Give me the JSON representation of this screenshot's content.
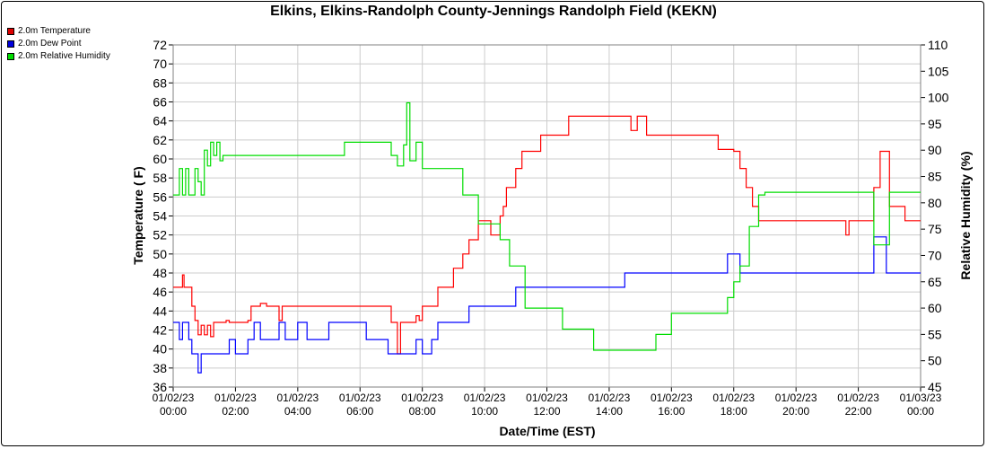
{
  "chart_data": {
    "type": "line",
    "title": "Elkins, Elkins-Randolph County-Jennings Randolph Field (KEKN)",
    "xlabel": "Date/Time (EST)",
    "ylabel": "Temperature ( F)",
    "y2label": "Relative Humidity (%)",
    "ylim": [
      36,
      72
    ],
    "y2lim": [
      45,
      110
    ],
    "grid": true,
    "legend_position": "top-left",
    "y_ticks": [
      "36",
      "38",
      "40",
      "42",
      "44",
      "46",
      "48",
      "50",
      "52",
      "54",
      "56",
      "58",
      "60",
      "62",
      "64",
      "66",
      "68",
      "70",
      "72"
    ],
    "y2_ticks": [
      "45",
      "50",
      "55",
      "60",
      "65",
      "70",
      "75",
      "80",
      "85",
      "90",
      "95",
      "100",
      "105",
      "110"
    ],
    "x_ticks": [
      {
        "date": "01/02/23",
        "time": "00:00"
      },
      {
        "date": "01/02/23",
        "time": "02:00"
      },
      {
        "date": "01/02/23",
        "time": "04:00"
      },
      {
        "date": "01/02/23",
        "time": "06:00"
      },
      {
        "date": "01/02/23",
        "time": "08:00"
      },
      {
        "date": "01/02/23",
        "time": "10:00"
      },
      {
        "date": "01/02/23",
        "time": "12:00"
      },
      {
        "date": "01/02/23",
        "time": "14:00"
      },
      {
        "date": "01/02/23",
        "time": "16:00"
      },
      {
        "date": "01/02/23",
        "time": "18:00"
      },
      {
        "date": "01/02/23",
        "time": "20:00"
      },
      {
        "date": "01/02/23",
        "time": "22:00"
      },
      {
        "date": "01/03/23",
        "time": "00:00"
      }
    ],
    "x_unit": "hours",
    "series": [
      {
        "name": "2.0m Temperature",
        "color": "#ff0000",
        "axis": "left",
        "x": [
          0,
          0.3,
          0.35,
          0.4,
          0.6,
          0.7,
          0.8,
          0.9,
          1.0,
          1.1,
          1.2,
          1.3,
          1.4,
          1.5,
          1.6,
          1.7,
          1.8,
          2.0,
          2.2,
          2.4,
          2.5,
          2.6,
          2.8,
          3.0,
          3.2,
          3.4,
          3.5,
          3.6,
          3.8,
          4.0,
          4.5,
          5.0,
          5.5,
          6.0,
          6.5,
          6.9,
          7.0,
          7.2,
          7.3,
          7.4,
          7.6,
          7.8,
          7.9,
          8.0,
          8.2,
          8.3,
          8.5,
          8.7,
          9.0,
          9.3,
          9.5,
          9.8,
          10.0,
          10.2,
          10.5,
          10.6,
          10.7,
          10.9,
          11.0,
          11.2,
          11.3,
          11.5,
          11.8,
          12.0,
          12.5,
          12.7,
          13.0,
          13.5,
          14.0,
          14.5,
          14.7,
          14.9,
          15.2,
          15.5,
          16.0,
          16.5,
          17.0,
          17.3,
          17.5,
          17.8,
          18.0,
          18.2,
          18.4,
          18.6,
          18.8,
          19.0,
          19.5,
          20.0,
          20.5,
          21.0,
          21.5,
          21.6,
          21.7,
          21.9,
          22.0,
          22.3,
          22.5,
          22.7,
          22.9,
          23.0,
          23.5,
          24.0
        ],
        "y": [
          46.5,
          47.8,
          46.5,
          46.5,
          44.5,
          43.0,
          41.5,
          42.5,
          41.5,
          42.5,
          41.3,
          42.8,
          42.8,
          42.8,
          42.8,
          43.0,
          42.8,
          42.8,
          42.8,
          43.0,
          44.5,
          44.5,
          44.8,
          44.5,
          44.5,
          43.0,
          44.5,
          44.5,
          44.5,
          44.5,
          44.5,
          44.5,
          44.5,
          44.5,
          44.5,
          44.5,
          42.8,
          39.5,
          42.8,
          42.8,
          42.8,
          43.5,
          43.0,
          44.5,
          44.5,
          44.5,
          46.5,
          46.5,
          48.5,
          50.0,
          51.5,
          53.5,
          53.5,
          52.0,
          54.0,
          55.0,
          57.0,
          57.0,
          59.0,
          60.8,
          60.8,
          60.8,
          62.5,
          62.5,
          62.5,
          64.5,
          64.5,
          64.5,
          64.5,
          64.5,
          63.0,
          64.5,
          62.5,
          62.5,
          62.5,
          62.5,
          62.5,
          62.5,
          61.0,
          61.0,
          60.8,
          59.0,
          57.0,
          55.0,
          53.5,
          53.5,
          53.5,
          53.5,
          53.5,
          53.5,
          53.5,
          52.0,
          53.5,
          53.5,
          53.5,
          53.5,
          57.0,
          60.8,
          60.8,
          55.0,
          53.5,
          53.5
        ]
      },
      {
        "name": "2.0m Dew Point",
        "color": "#0000ff",
        "axis": "left",
        "x": [
          0,
          0.2,
          0.3,
          0.4,
          0.5,
          0.6,
          0.7,
          0.8,
          0.9,
          1.0,
          1.1,
          1.2,
          1.3,
          1.4,
          1.6,
          1.8,
          2.0,
          2.2,
          2.4,
          2.5,
          2.6,
          2.8,
          3.0,
          3.2,
          3.4,
          3.6,
          3.8,
          4.0,
          4.3,
          4.6,
          5.0,
          5.4,
          5.8,
          6.2,
          6.5,
          6.9,
          7.0,
          7.2,
          7.5,
          7.8,
          8.0,
          8.3,
          8.5,
          8.8,
          9.0,
          9.5,
          9.8,
          10.0,
          10.5,
          11.0,
          11.5,
          12.0,
          12.5,
          13.0,
          13.5,
          14.0,
          14.5,
          15.0,
          15.5,
          16.0,
          16.5,
          17.0,
          17.5,
          17.8,
          18.0,
          18.2,
          18.5,
          19.0,
          20.0,
          21.0,
          22.0,
          22.3,
          22.5,
          22.7,
          22.9,
          23.0,
          23.5,
          24.0
        ],
        "y": [
          42.8,
          41.0,
          42.8,
          42.8,
          41.0,
          39.5,
          39.5,
          37.5,
          39.5,
          39.5,
          39.5,
          39.5,
          39.5,
          39.5,
          39.5,
          41.0,
          39.5,
          39.5,
          41.0,
          41.0,
          42.8,
          41.0,
          41.0,
          41.0,
          42.8,
          41.0,
          41.0,
          42.8,
          41.0,
          41.0,
          42.8,
          42.8,
          42.8,
          41.0,
          41.0,
          39.5,
          39.5,
          39.5,
          39.5,
          41.0,
          39.5,
          41.0,
          42.8,
          42.8,
          42.8,
          44.5,
          44.5,
          44.5,
          44.5,
          46.5,
          46.5,
          46.5,
          46.5,
          46.5,
          46.5,
          46.5,
          48.0,
          48.0,
          48.0,
          48.0,
          48.0,
          48.0,
          48.0,
          50.0,
          50.0,
          48.0,
          48.0,
          48.0,
          48.0,
          48.0,
          48.0,
          48.0,
          51.8,
          51.8,
          48.0,
          48.0,
          48.0,
          48.0
        ]
      },
      {
        "name": "2.0m Relative Humidity",
        "color": "#00dd00",
        "axis": "right",
        "x": [
          0,
          0.2,
          0.3,
          0.4,
          0.5,
          0.6,
          0.7,
          0.8,
          0.9,
          1.0,
          1.1,
          1.2,
          1.3,
          1.4,
          1.5,
          1.6,
          1.8,
          2.0,
          2.2,
          2.4,
          2.6,
          2.8,
          3.0,
          3.2,
          3.4,
          3.6,
          3.8,
          4.0,
          4.5,
          5.0,
          5.5,
          6.0,
          6.5,
          6.9,
          7.0,
          7.2,
          7.4,
          7.5,
          7.6,
          7.8,
          8.0,
          8.2,
          8.5,
          8.8,
          9.0,
          9.3,
          9.5,
          9.8,
          10.0,
          10.2,
          10.5,
          10.8,
          11.0,
          11.3,
          11.5,
          11.8,
          12.0,
          12.5,
          13.0,
          13.5,
          14.0,
          14.5,
          15.0,
          15.5,
          16.0,
          16.5,
          17.0,
          17.5,
          17.8,
          18.0,
          18.2,
          18.5,
          18.8,
          19.0,
          19.5,
          20.0,
          20.5,
          21.0,
          21.5,
          22.0,
          22.3,
          22.5,
          22.7,
          23.0,
          23.5,
          24.0
        ],
        "y": [
          81.5,
          86.5,
          81.5,
          86.5,
          81.5,
          81.5,
          86.5,
          84.0,
          81.5,
          90.0,
          87.0,
          91.5,
          89.0,
          91.5,
          88.0,
          89.0,
          89.0,
          89.0,
          89.0,
          89.0,
          89.0,
          89.0,
          89.0,
          89.0,
          89.0,
          89.0,
          89.0,
          89.0,
          89.0,
          89.0,
          91.5,
          91.5,
          91.5,
          91.5,
          89.0,
          87.0,
          91.0,
          99.0,
          88.0,
          91.5,
          86.5,
          86.5,
          86.5,
          86.5,
          86.5,
          81.5,
          81.5,
          76.0,
          76.0,
          76.0,
          73.0,
          68.0,
          68.0,
          60.0,
          60.0,
          60.0,
          60.0,
          56.0,
          56.0,
          52.0,
          52.0,
          52.0,
          52.0,
          55.0,
          59.0,
          59.0,
          59.0,
          59.0,
          62.0,
          65.0,
          68.0,
          75.5,
          81.5,
          82.0,
          82.0,
          82.0,
          82.0,
          82.0,
          82.0,
          82.0,
          82.0,
          72.0,
          72.0,
          82.0,
          82.0,
          82.0
        ]
      }
    ]
  }
}
